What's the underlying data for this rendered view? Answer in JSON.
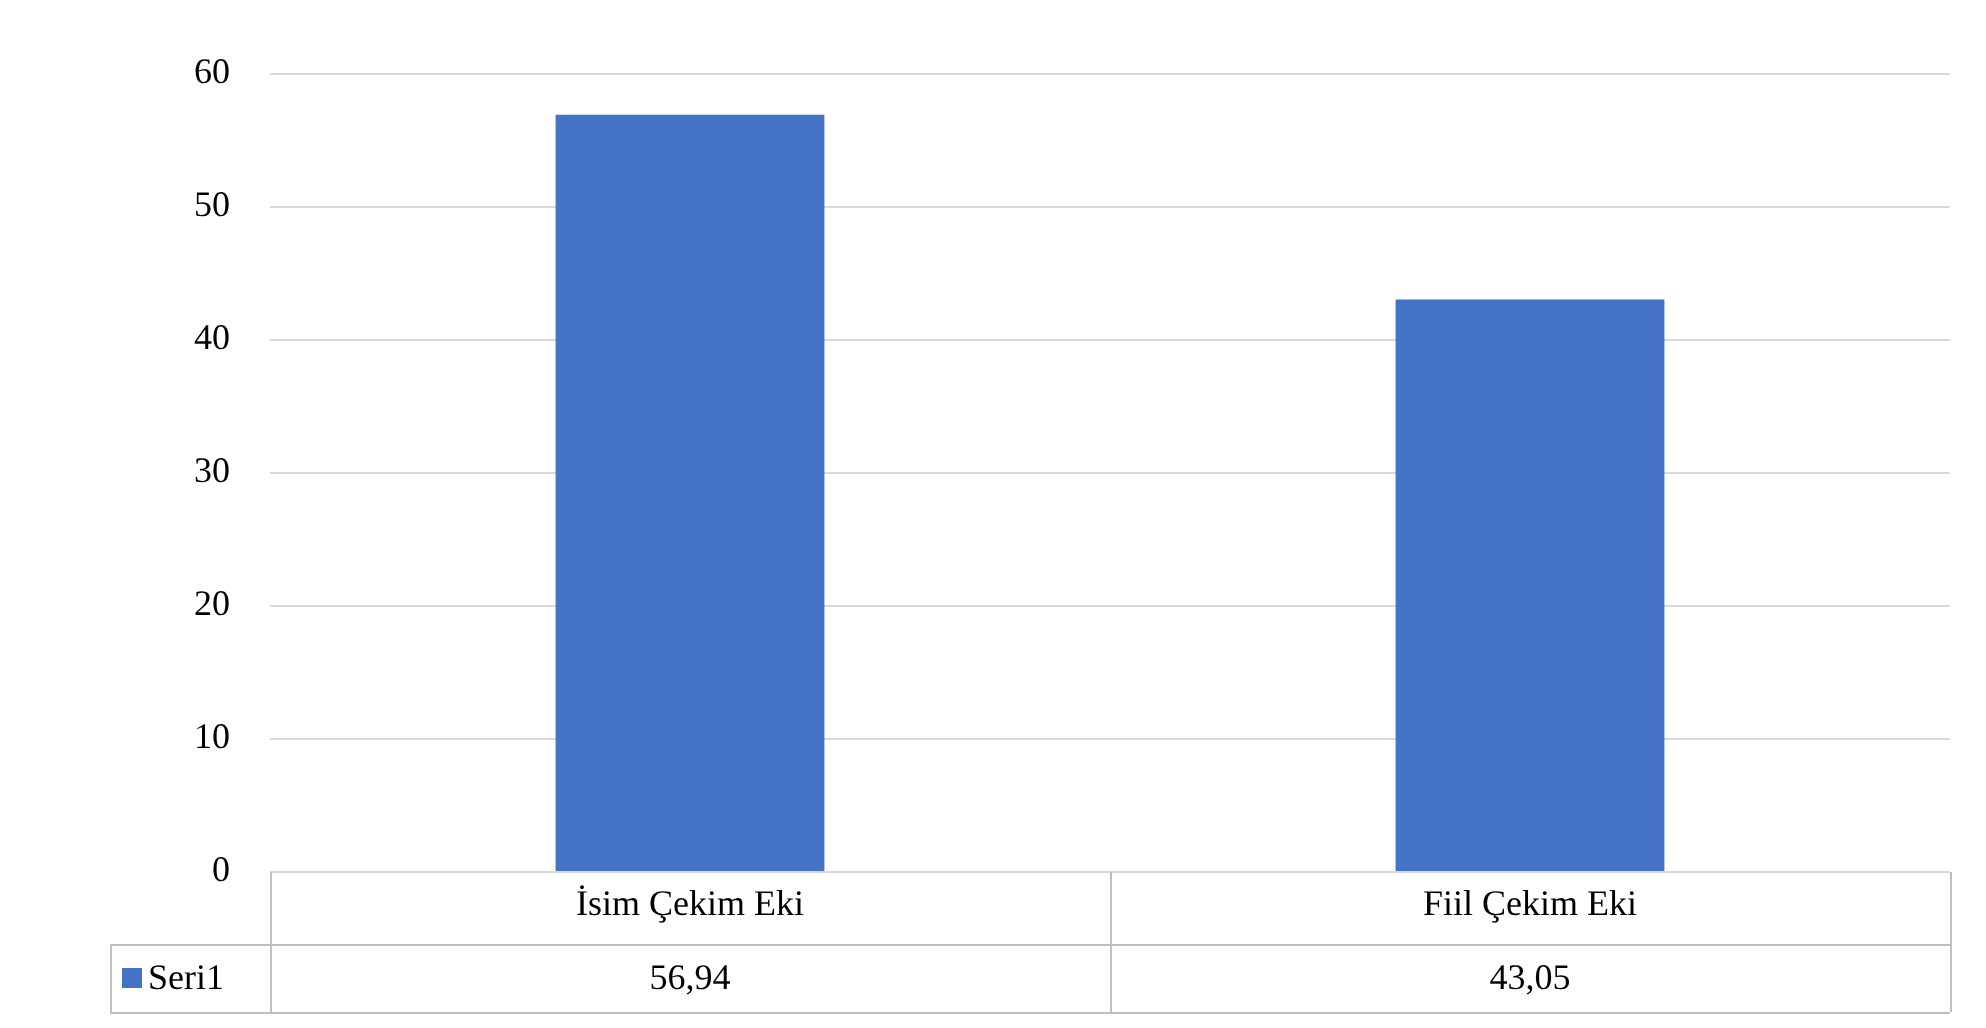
{
  "chart_data": {
    "type": "bar",
    "categories": [
      "İsim Çekim Eki",
      "Fiil Çekim Eki"
    ],
    "series": [
      {
        "name": "Seri1",
        "color": "#4472c4",
        "values": [
          56.94,
          43.05
        ],
        "value_labels": [
          "56,94",
          "43,05"
        ]
      }
    ],
    "ylim": [
      0,
      60
    ],
    "yticks": [
      0,
      10,
      20,
      30,
      40,
      50,
      60
    ],
    "grid": "y",
    "legend": "bottom left"
  }
}
